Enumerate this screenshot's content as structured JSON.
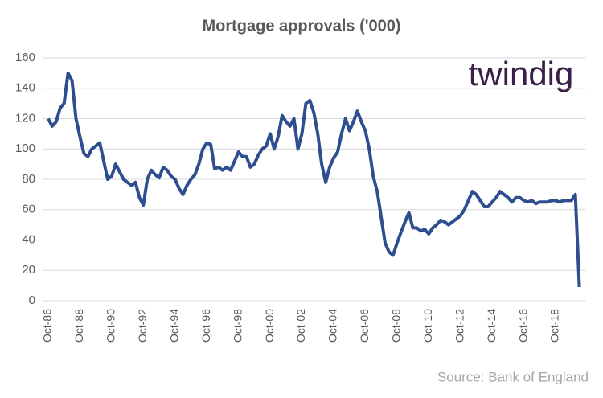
{
  "chart_data": {
    "type": "line",
    "title": "Mortgage approvals ('000)",
    "logo": "twindig",
    "source": "Source: Bank of England",
    "categories": [
      "Oct-86",
      null,
      null,
      null,
      null,
      null,
      null,
      null,
      "Oct-88",
      null,
      null,
      null,
      null,
      null,
      null,
      null,
      "Oct-90",
      null,
      null,
      null,
      null,
      null,
      null,
      null,
      "Oct-92",
      null,
      null,
      null,
      null,
      null,
      null,
      null,
      "Oct-94",
      null,
      null,
      null,
      null,
      null,
      null,
      null,
      "Oct-96",
      null,
      null,
      null,
      null,
      null,
      null,
      null,
      "Oct-98",
      null,
      null,
      null,
      null,
      null,
      null,
      null,
      "Oct-00",
      null,
      null,
      null,
      null,
      null,
      null,
      null,
      "Oct-02",
      null,
      null,
      null,
      null,
      null,
      null,
      null,
      "Oct-04",
      null,
      null,
      null,
      null,
      null,
      null,
      null,
      "Oct-06",
      null,
      null,
      null,
      null,
      null,
      null,
      null,
      "Oct-08",
      null,
      null,
      null,
      null,
      null,
      null,
      null,
      "Oct-10",
      null,
      null,
      null,
      null,
      null,
      null,
      null,
      "Oct-12",
      null,
      null,
      null,
      null,
      null,
      null,
      null,
      "Oct-14",
      null,
      null,
      null,
      null,
      null,
      null,
      null,
      "Oct-16",
      null,
      null,
      null,
      null,
      null,
      null,
      null,
      "Oct-18",
      null,
      null,
      null,
      null,
      null,
      null
    ],
    "values": [
      120,
      115,
      118,
      127,
      130,
      150,
      145,
      120,
      108,
      97,
      95,
      100,
      102,
      104,
      92,
      80,
      82,
      90,
      85,
      80,
      78,
      76,
      78,
      68,
      63,
      80,
      86,
      83,
      81,
      88,
      86,
      82,
      80,
      74,
      70,
      76,
      80,
      83,
      90,
      100,
      104,
      103,
      87,
      88,
      86,
      88,
      86,
      92,
      98,
      95,
      95,
      88,
      90,
      96,
      100,
      102,
      110,
      100,
      108,
      122,
      118,
      115,
      120,
      100,
      110,
      130,
      132,
      124,
      110,
      90,
      78,
      88,
      94,
      98,
      110,
      120,
      112,
      118,
      125,
      118,
      112,
      100,
      82,
      72,
      55,
      38,
      32,
      30,
      38,
      45,
      52,
      58,
      48,
      48,
      46,
      47,
      44,
      48,
      50,
      53,
      52,
      50,
      52,
      54,
      56,
      60,
      66,
      72,
      70,
      66,
      62,
      62,
      65,
      68,
      72,
      70,
      68,
      65,
      68,
      68,
      66,
      65,
      66,
      64,
      65,
      65,
      65,
      66,
      66,
      65,
      66,
      66,
      66,
      70,
      9
    ],
    "color": "#2e4e8f",
    "ylim": [
      0,
      160
    ],
    "yticks": [
      0,
      20,
      40,
      60,
      80,
      100,
      120,
      140,
      160
    ],
    "grid": true
  }
}
